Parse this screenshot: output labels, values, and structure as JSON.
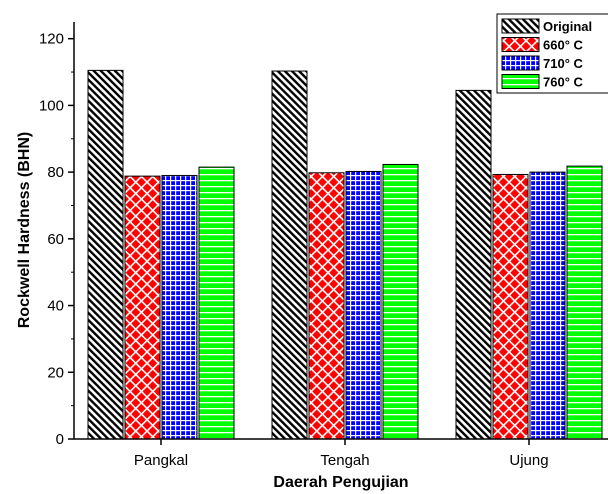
{
  "chart_data": {
    "type": "bar",
    "title": "",
    "xlabel": "Daerah Pengujian",
    "ylabel": "Rockwell Hardness (BHN)",
    "categories": [
      "Pangkal",
      "Tengah",
      "Ujung"
    ],
    "ylim": [
      0,
      125
    ],
    "yticks": [
      0,
      20,
      40,
      60,
      80,
      100,
      120
    ],
    "grid": false,
    "legend_position": "top-right",
    "series": [
      {
        "name": "Original",
        "values": [
          110.5,
          110.3,
          104.5
        ],
        "color": "#000000",
        "pattern": "diagonal-hatch"
      },
      {
        "name": "660° C",
        "values": [
          78.8,
          79.8,
          79.3
        ],
        "color": "#ff0000",
        "pattern": "crosshatch"
      },
      {
        "name": "710° C",
        "values": [
          79.0,
          80.2,
          80.0
        ],
        "color": "#0000ff",
        "pattern": "grid"
      },
      {
        "name": "760° C",
        "values": [
          81.5,
          82.3,
          81.8
        ],
        "color": "#00ff00",
        "pattern": "horizontal-lines"
      }
    ]
  }
}
